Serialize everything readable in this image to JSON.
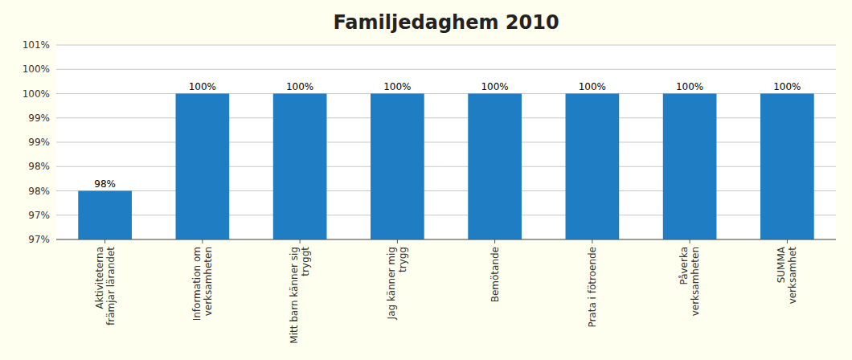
{
  "chart_data": {
    "type": "bar",
    "title": "Familjedaghem 2010",
    "categories": [
      "Aktiviteterna\nfrämjar lärandet",
      "Information om\nverksamheten",
      "Mitt barn känner sig\ntryggt",
      "Jag känner mig\ntrygg",
      "Bemötande",
      "Prata i fötroende",
      "Påverka\nverksamheten",
      "SUMMA\nverksamhet"
    ],
    "values": [
      0.98,
      1.0,
      1.0,
      1.0,
      1.0,
      1.0,
      1.0,
      1.0
    ],
    "value_labels": [
      "98%",
      "100%",
      "100%",
      "100%",
      "100%",
      "100%",
      "100%",
      "100%"
    ],
    "color": "#1F7DC4",
    "ylim": [
      0.97,
      1.01
    ],
    "yticks": [
      {
        "value": 0.97,
        "label": "97%"
      },
      {
        "value": 0.975,
        "label": "97%"
      },
      {
        "value": 0.98,
        "label": "98%"
      },
      {
        "value": 0.985,
        "label": "98%"
      },
      {
        "value": 0.99,
        "label": "99%"
      },
      {
        "value": 0.995,
        "label": "99%"
      },
      {
        "value": 1.0,
        "label": "100%"
      },
      {
        "value": 1.005,
        "label": "100%"
      },
      {
        "value": 1.01,
        "label": "101%"
      }
    ],
    "grid": true,
    "data_labels": true
  }
}
